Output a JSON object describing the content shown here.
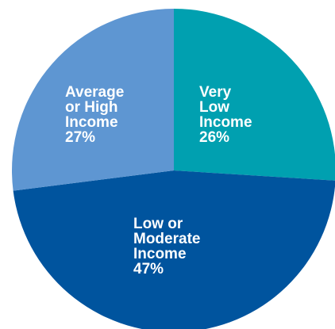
{
  "chart_data": {
    "type": "pie",
    "title": "",
    "slices": [
      {
        "label_lines": [
          "Very",
          "Low",
          "Income"
        ],
        "value": 26,
        "value_label": "26%",
        "color": "#00A0B0"
      },
      {
        "label_lines": [
          "Low or",
          "Moderate",
          "Income"
        ],
        "value": 47,
        "value_label": "47%",
        "color": "#00549E"
      },
      {
        "label_lines": [
          "Average",
          "or High",
          "Income"
        ],
        "value": 27,
        "value_label": "27%",
        "color": "#5E96D2"
      }
    ],
    "start_angle_deg": 0,
    "direction": "clockwise",
    "legend": "none",
    "labels_inside": true
  }
}
